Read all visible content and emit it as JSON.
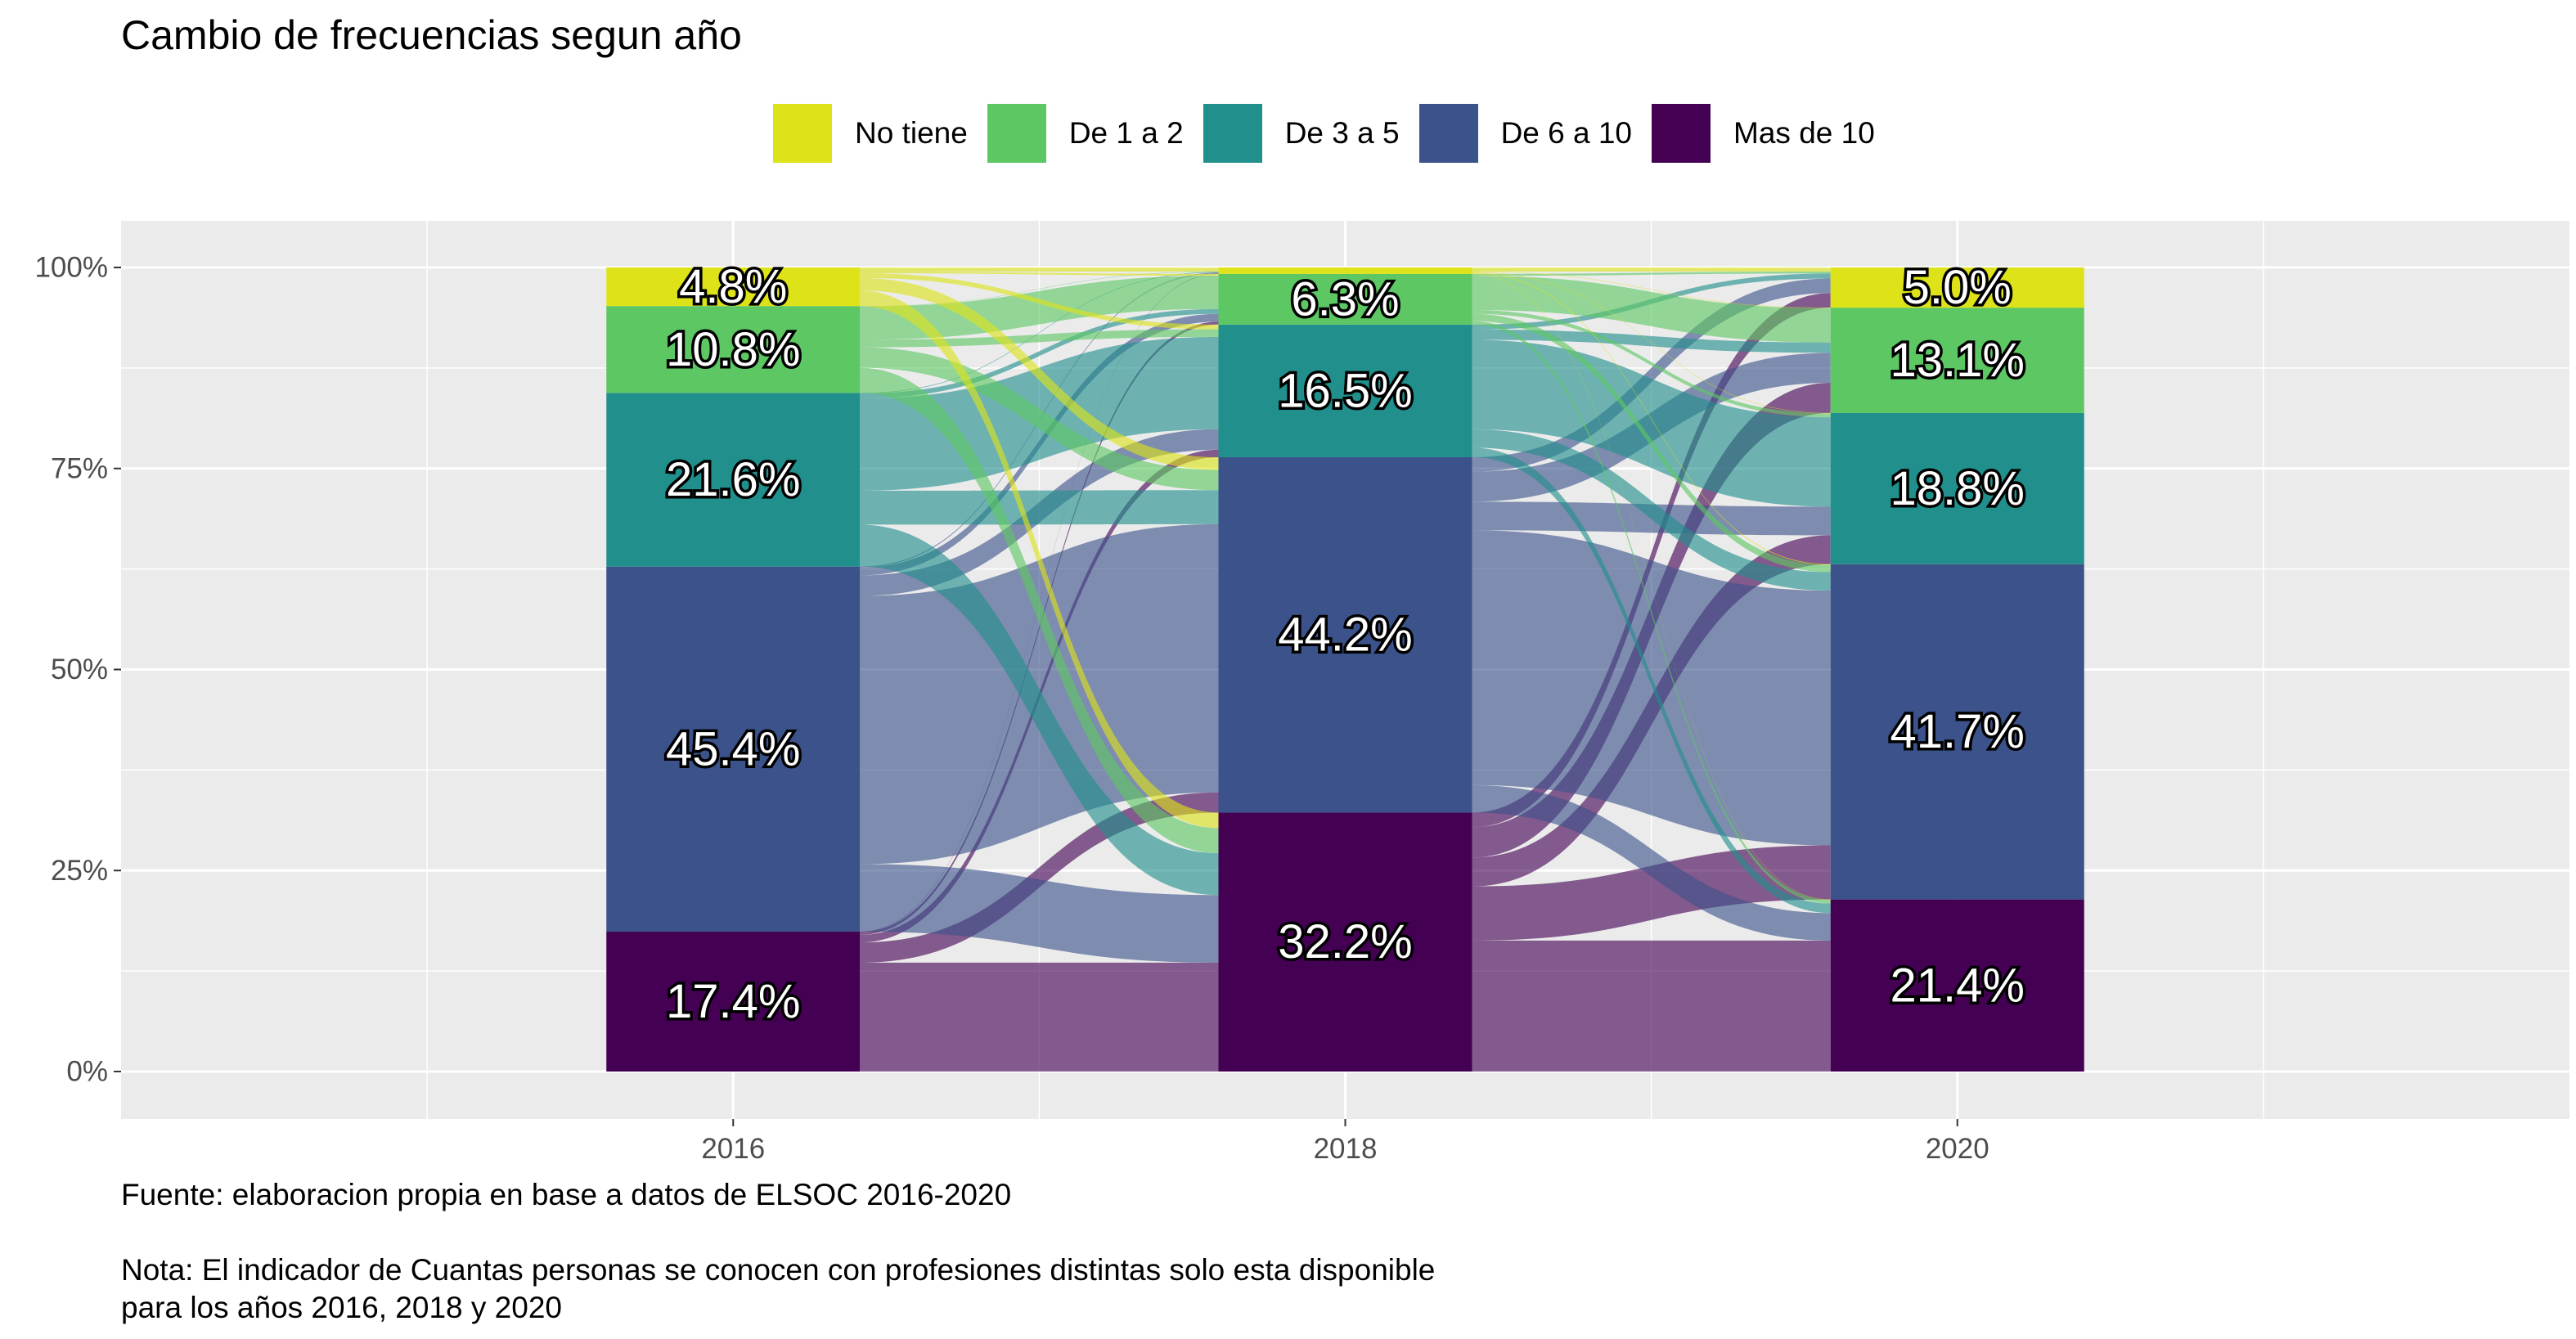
{
  "chart_data": {
    "type": "alluvial",
    "title": "Cambio de frecuencias segun año",
    "xlabel": "",
    "ylabel": "",
    "ylim": [
      0,
      1
    ],
    "y_ticks": [
      "0%",
      "25%",
      "50%",
      "75%",
      "100%"
    ],
    "grid": true,
    "legend_position": "top",
    "categories": [
      "2016",
      "2018",
      "2020"
    ],
    "series": [
      {
        "name": "Mas de 10",
        "color": "#440154",
        "values": [
          0.174,
          0.322,
          0.214
        ],
        "labels": [
          "17.4%",
          "32.2%",
          "21.4%"
        ]
      },
      {
        "name": "De 6 a 10",
        "color": "#3B528B",
        "values": [
          0.454,
          0.442,
          0.417
        ],
        "labels": [
          "45.4%",
          "44.2%",
          "41.7%"
        ]
      },
      {
        "name": "De 3 a 5",
        "color": "#21908C",
        "values": [
          0.216,
          0.165,
          0.188
        ],
        "labels": [
          "21.6%",
          "16.5%",
          "18.8%"
        ]
      },
      {
        "name": "De 1 a 2",
        "color": "#5DC863",
        "values": [
          0.108,
          0.063,
          0.131
        ],
        "labels": [
          "10.8%",
          "6.3%",
          "13.1%"
        ]
      },
      {
        "name": "No tiene",
        "color": "#DDE318",
        "values": [
          0.048,
          0.008,
          0.05
        ],
        "labels": [
          "4.8%",
          "",
          "5.0%"
        ]
      }
    ],
    "legend_order": [
      "No tiene",
      "De 1 a 2",
      "De 3 a 5",
      "De 6 a 10",
      "Mas de 10"
    ]
  },
  "caption": {
    "source": "Fuente: elaboracion propia en base a datos de ELSOC 2016-2020",
    "note_line1": "Nota: El indicador de Cuantas personas se conocen con profesiones distintas solo esta disponible",
    "note_line2": "para los años 2016, 2018 y 2020"
  }
}
